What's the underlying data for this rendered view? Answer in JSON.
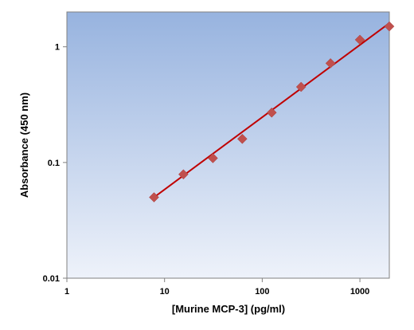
{
  "chart_data": {
    "type": "scatter",
    "title": "",
    "xlabel": "[Murine MCP-3] (pg/ml)",
    "ylabel": "Absorbance (450 nm)",
    "x_scale": "log",
    "y_scale": "log",
    "xlim": [
      1,
      2000
    ],
    "ylim": [
      0.01,
      2
    ],
    "x_ticks": [
      1,
      10,
      100,
      1000
    ],
    "x_tick_labels": [
      "1",
      "10",
      "100",
      "1000"
    ],
    "y_ticks": [
      0.01,
      0.1,
      1
    ],
    "y_tick_labels": [
      "0.01",
      "0.1",
      "1"
    ],
    "grid": false,
    "legend": "none",
    "series": [
      {
        "marker": "diamond",
        "color": "#c0504d",
        "x": [
          7.8,
          15.6,
          31.25,
          62.5,
          125,
          250,
          500,
          1000,
          2000
        ],
        "y": [
          0.05,
          0.079,
          0.109,
          0.16,
          0.27,
          0.45,
          0.72,
          1.15,
          1.5
        ]
      }
    ],
    "fit_line": {
      "color": "#c00000",
      "x": [
        7.8,
        2000
      ],
      "y": [
        0.05,
        1.6
      ]
    },
    "plot_background": {
      "top": "#97b3df",
      "bottom": "#eef2fa"
    }
  }
}
